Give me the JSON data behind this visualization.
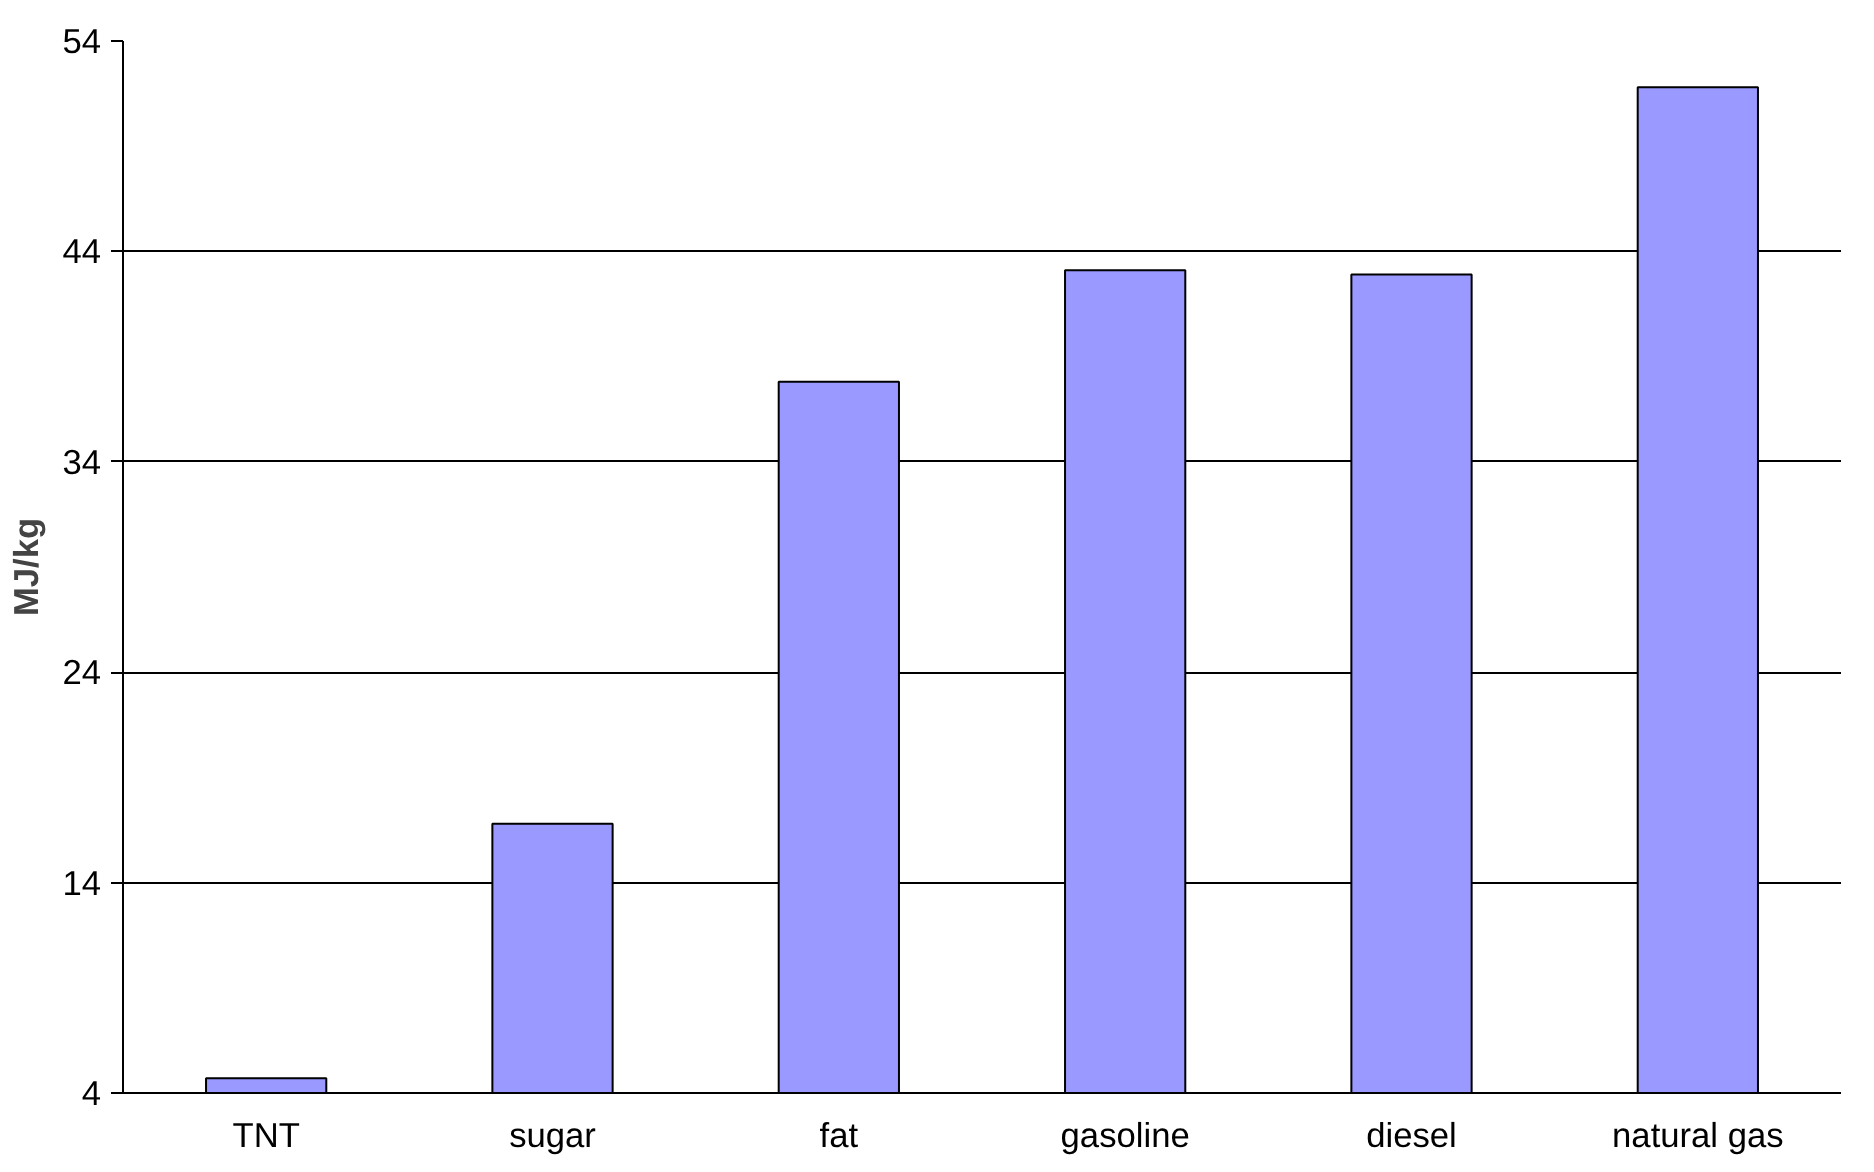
{
  "chart_data": {
    "type": "bar",
    "ylabel": "MJ/kg",
    "categories": [
      "TNT",
      "sugar",
      "fat",
      "gasoline",
      "diesel",
      "natural gas"
    ],
    "values": [
      4.7,
      16.8,
      37.8,
      43.1,
      42.9,
      51.8
    ],
    "color": "#9999ff",
    "ylim": [
      4,
      54
    ],
    "yticks": [
      4,
      14,
      24,
      34,
      44,
      54
    ],
    "grid": "y"
  }
}
